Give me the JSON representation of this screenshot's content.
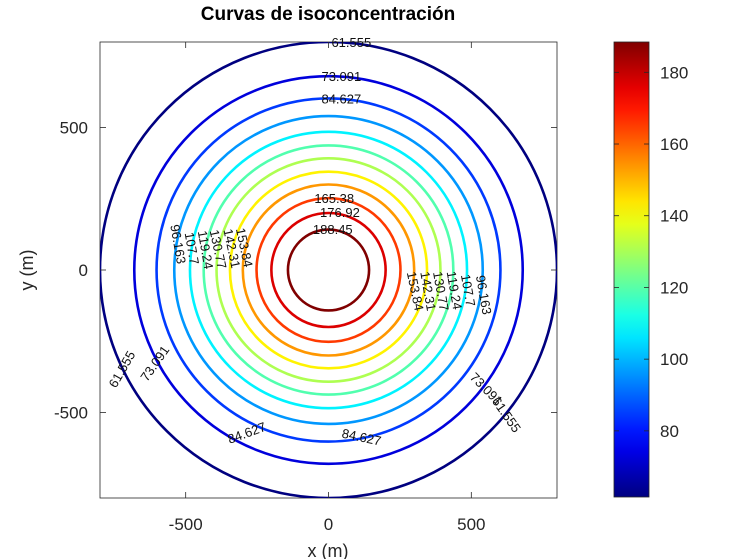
{
  "chart_data": {
    "type": "contour",
    "title": "Curvas de isoconcentración",
    "xlabel": "x (m)",
    "ylabel": "y (m)",
    "xlim": [
      -800,
      800
    ],
    "ylim": [
      -800,
      800
    ],
    "xticks": [
      -500,
      0,
      500
    ],
    "yticks": [
      -500,
      0,
      500
    ],
    "tick_labels_x": [
      "-500",
      "0",
      "500"
    ],
    "tick_labels_y": [
      "-500",
      "0",
      "500"
    ],
    "colormap": "jet",
    "colorbar": {
      "range": [
        61.555,
        188.45
      ],
      "ticks": [
        80,
        100,
        120,
        140,
        160,
        180
      ],
      "tick_labels": [
        "80",
        "100",
        "120",
        "140",
        "160",
        "180"
      ]
    },
    "center": [
      0,
      0
    ],
    "levels": [
      {
        "value": 61.555,
        "label": "61.555",
        "radius": 800
      },
      {
        "value": 73.091,
        "label": "73.091",
        "radius": 680
      },
      {
        "value": 84.627,
        "label": "84.627",
        "radius": 602
      },
      {
        "value": 96.163,
        "label": "96.163",
        "radius": 540
      },
      {
        "value": 107.7,
        "label": "107.7",
        "radius": 485
      },
      {
        "value": 119.24,
        "label": "119.24",
        "radius": 437
      },
      {
        "value": 130.77,
        "label": "130.77",
        "radius": 392
      },
      {
        "value": 142.31,
        "label": "142.31",
        "radius": 345
      },
      {
        "value": 153.84,
        "label": "153.84",
        "radius": 300
      },
      {
        "value": 165.38,
        "label": "165.38",
        "radius": 252
      },
      {
        "value": 176.92,
        "label": "176.92",
        "radius": 200
      },
      {
        "value": 188.45,
        "label": "188.45",
        "radius": 142
      }
    ],
    "contour_labels": [
      {
        "text": "61.555",
        "x": 80,
        "y": 795,
        "angle": 0
      },
      {
        "text": "73.091",
        "x": 45,
        "y": 675,
        "angle": 0
      },
      {
        "text": "84.627",
        "x": 45,
        "y": 597,
        "angle": 0
      },
      {
        "text": "165.38",
        "x": 20,
        "y": 248,
        "angle": 0
      },
      {
        "text": "176.92",
        "x": 40,
        "y": 198,
        "angle": 0
      },
      {
        "text": "188.45",
        "x": 15,
        "y": 138,
        "angle": 0
      },
      {
        "text": "96.163",
        "x": -530,
        "y": 90,
        "angle": -80
      },
      {
        "text": "107.7",
        "x": -482,
        "y": 75,
        "angle": -80
      },
      {
        "text": "119.24",
        "x": -434,
        "y": 70,
        "angle": -80
      },
      {
        "text": "130.77",
        "x": -390,
        "y": 72,
        "angle": -78
      },
      {
        "text": "142.31",
        "x": -342,
        "y": 75,
        "angle": -78
      },
      {
        "text": "153.84",
        "x": -298,
        "y": 78,
        "angle": -78
      },
      {
        "text": "153.84",
        "x": 300,
        "y": -75,
        "angle": -78
      },
      {
        "text": "142.31",
        "x": 345,
        "y": -75,
        "angle": -80
      },
      {
        "text": "130.77",
        "x": 390,
        "y": -75,
        "angle": -80
      },
      {
        "text": "119.24",
        "x": 437,
        "y": -72,
        "angle": -80
      },
      {
        "text": "107.7",
        "x": 485,
        "y": -72,
        "angle": -80
      },
      {
        "text": "96.163",
        "x": 540,
        "y": -88,
        "angle": -80
      },
      {
        "text": "73.091",
        "x": -605,
        "y": -330,
        "angle": 55
      },
      {
        "text": "61.555",
        "x": -720,
        "y": -350,
        "angle": 60
      },
      {
        "text": "84.627",
        "x": -285,
        "y": -575,
        "angle": 20
      },
      {
        "text": "84.627",
        "x": 115,
        "y": -590,
        "angle": -12
      },
      {
        "text": "73.091",
        "x": 550,
        "y": -420,
        "angle": -45
      },
      {
        "text": "61.555",
        "x": 620,
        "y": -510,
        "angle": -55
      }
    ]
  }
}
